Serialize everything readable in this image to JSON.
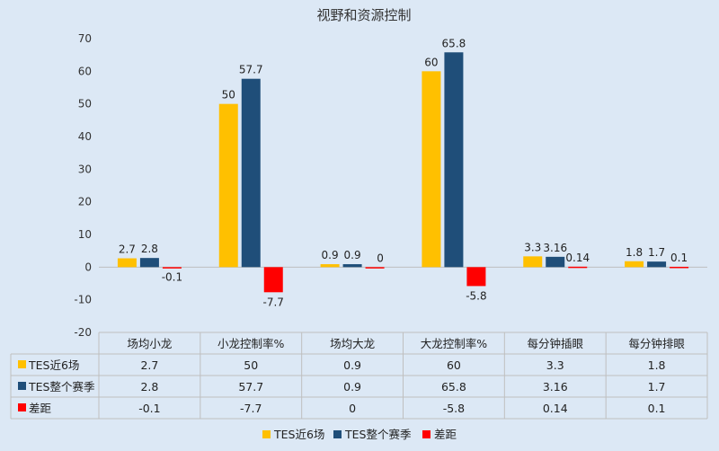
{
  "chart_data": {
    "type": "bar",
    "title": "视野和资源控制",
    "categories": [
      "场均小龙",
      "小龙控制率%",
      "场均大龙",
      "大龙控制率%",
      "每分钟插眼",
      "每分钟排眼"
    ],
    "ylim": [
      -20,
      70
    ],
    "yticks": [
      70,
      60,
      50,
      40,
      30,
      20,
      10,
      0,
      -10,
      -20
    ],
    "grid": false,
    "legend_position": "bottom",
    "series": [
      {
        "name": "TES近6场",
        "color": "#ffc000",
        "values": [
          2.7,
          50,
          0.9,
          60,
          3.3,
          1.8
        ],
        "labels": [
          "2.7",
          "50",
          "0.9",
          "60",
          "3.3",
          "1.8"
        ]
      },
      {
        "name": "TES整个赛季",
        "color": "#1f4e79",
        "values": [
          2.8,
          57.7,
          0.9,
          65.8,
          3.16,
          1.7
        ],
        "labels": [
          "2.8",
          "57.7",
          "0.9",
          "65.8",
          "3.16",
          "1.7"
        ]
      },
      {
        "name": "差距",
        "color": "#ff0000",
        "values": [
          -0.1,
          -7.7,
          0,
          -5.8,
          0.14,
          0.1
        ],
        "labels": [
          "-0.1",
          "-7.7",
          "0",
          "-5.8",
          "0.14",
          "0.1"
        ]
      }
    ]
  }
}
